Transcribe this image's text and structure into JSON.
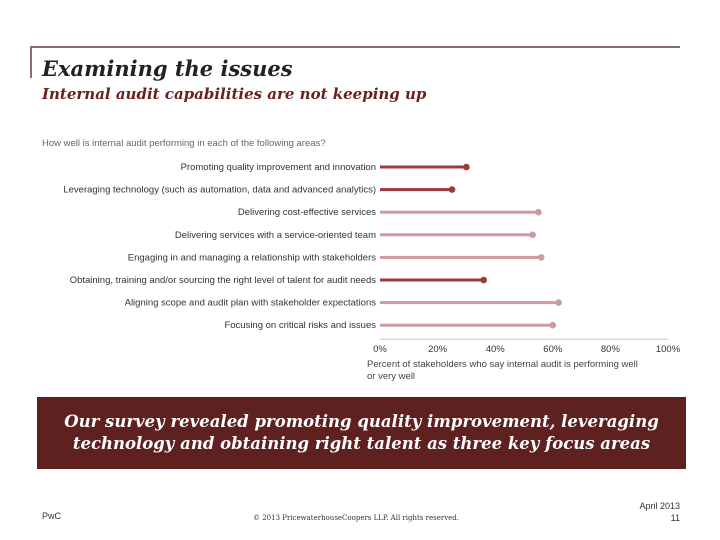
{
  "header": {
    "title": "Examining the issues",
    "subtitle": "Internal audit capabilities are not keeping up"
  },
  "chart_data": {
    "type": "bar",
    "title": "How well is internal audit performing in each of the following areas?",
    "categories": [
      "Promoting quality improvement and innovation",
      "Leveraging technology (such as automation, data and advanced analytics)",
      "Delivering cost-effective services",
      "Delivering services with a service-oriented team",
      "Engaging in and managing a relationship with stakeholders",
      "Obtaining, training and/or sourcing the right level of talent for audit needs",
      "Aligning scope and audit plan with stakeholder expectations",
      "Focusing on critical risks and issues"
    ],
    "values": [
      30,
      25,
      55,
      53,
      56,
      36,
      62,
      60
    ],
    "highlighted": [
      true,
      true,
      false,
      false,
      false,
      true,
      false,
      false
    ],
    "xlim": [
      0,
      100
    ],
    "xticks": [
      "0%",
      "20%",
      "40%",
      "60%",
      "80%",
      "100%"
    ],
    "xlabel_lines": [
      "Percent of stakeholders who say internal audit is performing well",
      "or very well"
    ],
    "colors": {
      "highlight": "#9b3a3f",
      "normal": "#cf9b9e"
    }
  },
  "banner": {
    "text": "Our survey revealed promoting quality improvement, leveraging technology and obtaining right talent as three key focus areas"
  },
  "footer": {
    "brand": "PwC",
    "copyright": "© 2013 PricewaterhouseCoopers LLP. All rights reserved.",
    "date": "April 2013",
    "page": "11"
  }
}
